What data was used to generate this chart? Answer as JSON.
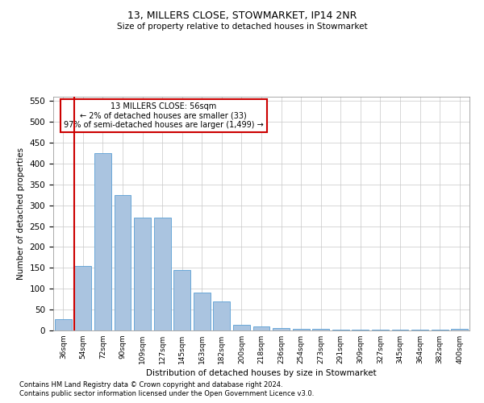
{
  "title1": "13, MILLERS CLOSE, STOWMARKET, IP14 2NR",
  "title2": "Size of property relative to detached houses in Stowmarket",
  "xlabel": "Distribution of detached houses by size in Stowmarket",
  "ylabel": "Number of detached properties",
  "categories": [
    "36sqm",
    "54sqm",
    "72sqm",
    "90sqm",
    "109sqm",
    "127sqm",
    "145sqm",
    "163sqm",
    "182sqm",
    "200sqm",
    "218sqm",
    "236sqm",
    "254sqm",
    "273sqm",
    "291sqm",
    "309sqm",
    "327sqm",
    "345sqm",
    "364sqm",
    "382sqm",
    "400sqm"
  ],
  "values": [
    28,
    155,
    425,
    325,
    270,
    270,
    145,
    90,
    70,
    13,
    10,
    5,
    4,
    3,
    2,
    2,
    2,
    1,
    1,
    1,
    3
  ],
  "bar_color": "#aac4e0",
  "bar_edge_color": "#5a9fd4",
  "vline_x": 0.57,
  "vline_color": "#cc0000",
  "annotation_text": "13 MILLERS CLOSE: 56sqm\n← 2% of detached houses are smaller (33)\n97% of semi-detached houses are larger (1,499) →",
  "annotation_box_color": "#ffffff",
  "annotation_box_edge": "#cc0000",
  "ylim": [
    0,
    560
  ],
  "yticks": [
    0,
    50,
    100,
    150,
    200,
    250,
    300,
    350,
    400,
    450,
    500,
    550
  ],
  "footnote1": "Contains HM Land Registry data © Crown copyright and database right 2024.",
  "footnote2": "Contains public sector information licensed under the Open Government Licence v3.0.",
  "background_color": "#ffffff",
  "grid_color": "#c8c8c8"
}
